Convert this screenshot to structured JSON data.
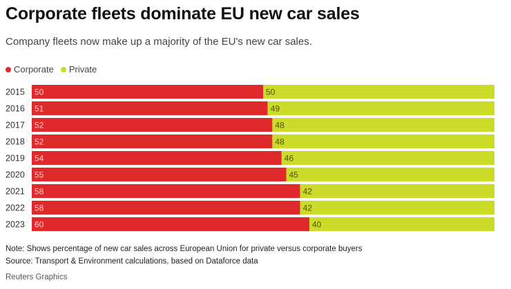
{
  "title": "Corporate fleets dominate EU new car sales",
  "subtitle": "Company fleets now make up a majority of the EU's new car sales.",
  "legend": [
    {
      "label": "Corporate",
      "color": "#e0292a"
    },
    {
      "label": "Private",
      "color": "#cbdb2a"
    }
  ],
  "notes": {
    "note": "Note: Shows percentage of new car sales across European Union for private versus corporate buyers",
    "source": "Source: Transport & Environment calculations, based on Dataforce data"
  },
  "credit": "Reuters Graphics",
  "chart_data": {
    "type": "bar",
    "orientation": "horizontal",
    "stacked": true,
    "categories": [
      "2015",
      "2016",
      "2017",
      "2018",
      "2019",
      "2020",
      "2021",
      "2022",
      "2023"
    ],
    "series": [
      {
        "name": "Corporate",
        "color": "#e0292a",
        "label_color": "#ffd0d0",
        "values": [
          50,
          51,
          52,
          52,
          54,
          55,
          58,
          58,
          60
        ]
      },
      {
        "name": "Private",
        "color": "#cbdb2a",
        "label_color": "#4f5400",
        "values": [
          50,
          49,
          48,
          48,
          46,
          45,
          42,
          42,
          40
        ]
      }
    ],
    "xlim": [
      0,
      100
    ],
    "unit": "%",
    "title": "Corporate fleets dominate EU new car sales",
    "xlabel": "",
    "ylabel": "",
    "legend_position": "top-left",
    "grid": false
  }
}
